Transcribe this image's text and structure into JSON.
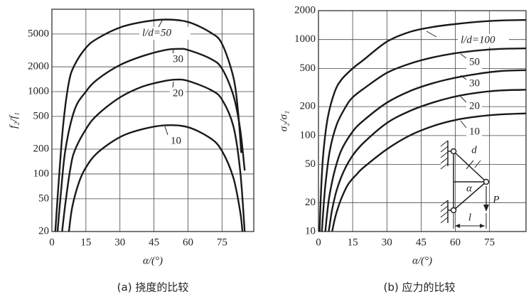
{
  "chart_data": [
    {
      "type": "line",
      "caption": "(a)  挠度的比较",
      "ylabel": "f₂/f₁",
      "xlabel": "α/(°)",
      "xlim": [
        0,
        89
      ],
      "ylim": [
        20,
        10000
      ],
      "ylog": true,
      "grid": true,
      "xticks": [
        0,
        15,
        30,
        45,
        60,
        75
      ],
      "yticks": [
        20,
        50,
        100,
        200,
        500,
        1000,
        2000,
        5000
      ],
      "series": [
        {
          "name": "l/d=50",
          "color": "#1a1a1a",
          "x": [
            1.5,
            3,
            5,
            7.5,
            10,
            15,
            20,
            30,
            40,
            50,
            60,
            70,
            75,
            80,
            82,
            83.5
          ],
          "values": [
            20,
            80,
            400,
            1300,
            2100,
            3400,
            4400,
            6000,
            7000,
            7500,
            7000,
            5200,
            3800,
            1500,
            600,
            180
          ]
        },
        {
          "name": "30",
          "color": "#1a1a1a",
          "x": [
            2.5,
            4,
            6,
            10,
            15,
            20,
            30,
            40,
            50,
            56,
            60,
            70,
            75,
            80,
            83,
            85
          ],
          "values": [
            20,
            60,
            200,
            600,
            1000,
            1400,
            2100,
            2700,
            3200,
            3300,
            3200,
            2500,
            1900,
            900,
            350,
            110
          ]
        },
        {
          "name": "20",
          "color": "#1a1a1a",
          "x": [
            4.5,
            6,
            8,
            10,
            15,
            20,
            30,
            40,
            50,
            55,
            60,
            70,
            75,
            80,
            83,
            85
          ],
          "values": [
            20,
            45,
            110,
            190,
            350,
            520,
            850,
            1150,
            1350,
            1400,
            1350,
            1050,
            800,
            380,
            110,
            20
          ]
        },
        {
          "name": "10",
          "color": "#1a1a1a",
          "x": [
            7.5,
            9,
            12,
            15,
            20,
            30,
            40,
            50,
            60,
            70,
            75,
            80,
            83,
            84
          ],
          "values": [
            20,
            40,
            80,
            120,
            180,
            280,
            350,
            390,
            370,
            270,
            190,
            90,
            35,
            20
          ]
        }
      ]
    },
    {
      "type": "line",
      "caption": "(b)  应力的比较",
      "ylabel": "σ₂/σ₁",
      "xlabel": "α/(°)",
      "xlim": [
        0,
        91
      ],
      "ylim": [
        10,
        2000
      ],
      "ylog": true,
      "grid": true,
      "xticks": [
        0,
        15,
        30,
        45,
        60,
        75
      ],
      "yticks": [
        10,
        20,
        50,
        100,
        200,
        500,
        1000,
        2000
      ],
      "annotations": [
        "d",
        "α",
        "P",
        "l"
      ],
      "series": [
        {
          "name": "l/d=100",
          "color": "#1a1a1a",
          "x": [
            0.5,
            1,
            2,
            4,
            7,
            10,
            15,
            20,
            30,
            40,
            50,
            60,
            70,
            80,
            91
          ],
          "values": [
            10,
            22,
            60,
            150,
            280,
            380,
            500,
            620,
            950,
            1200,
            1350,
            1450,
            1530,
            1580,
            1600
          ]
        },
        {
          "name": "50",
          "color": "#1a1a1a",
          "x": [
            1.5,
            2,
            3,
            5,
            8,
            12,
            15,
            20,
            30,
            40,
            50,
            60,
            70,
            80,
            91
          ],
          "values": [
            10,
            15,
            30,
            70,
            130,
            200,
            250,
            310,
            450,
            560,
            650,
            720,
            770,
            800,
            810
          ]
        },
        {
          "name": "30",
          "color": "#1a1a1a",
          "x": [
            3,
            4,
            5,
            7,
            10,
            15,
            20,
            30,
            40,
            50,
            60,
            70,
            80,
            91
          ],
          "values": [
            10,
            17,
            25,
            42,
            70,
            110,
            145,
            220,
            290,
            350,
            400,
            440,
            470,
            480
          ]
        },
        {
          "name": "20",
          "color": "#1a1a1a",
          "x": [
            4.5,
            5,
            6,
            8,
            11,
            15,
            20,
            30,
            40,
            50,
            60,
            70,
            80,
            91
          ],
          "values": [
            10,
            12,
            17,
            27,
            42,
            62,
            85,
            135,
            180,
            220,
            255,
            280,
            295,
            300
          ]
        },
        {
          "name": "10",
          "color": "#1a1a1a",
          "x": [
            6,
            7,
            8,
            10,
            13,
            17,
            20,
            30,
            40,
            50,
            60,
            70,
            80,
            91
          ],
          "values": [
            10,
            13,
            16,
            22,
            31,
            40,
            47,
            72,
            100,
            125,
            145,
            158,
            166,
            170
          ]
        }
      ]
    }
  ]
}
